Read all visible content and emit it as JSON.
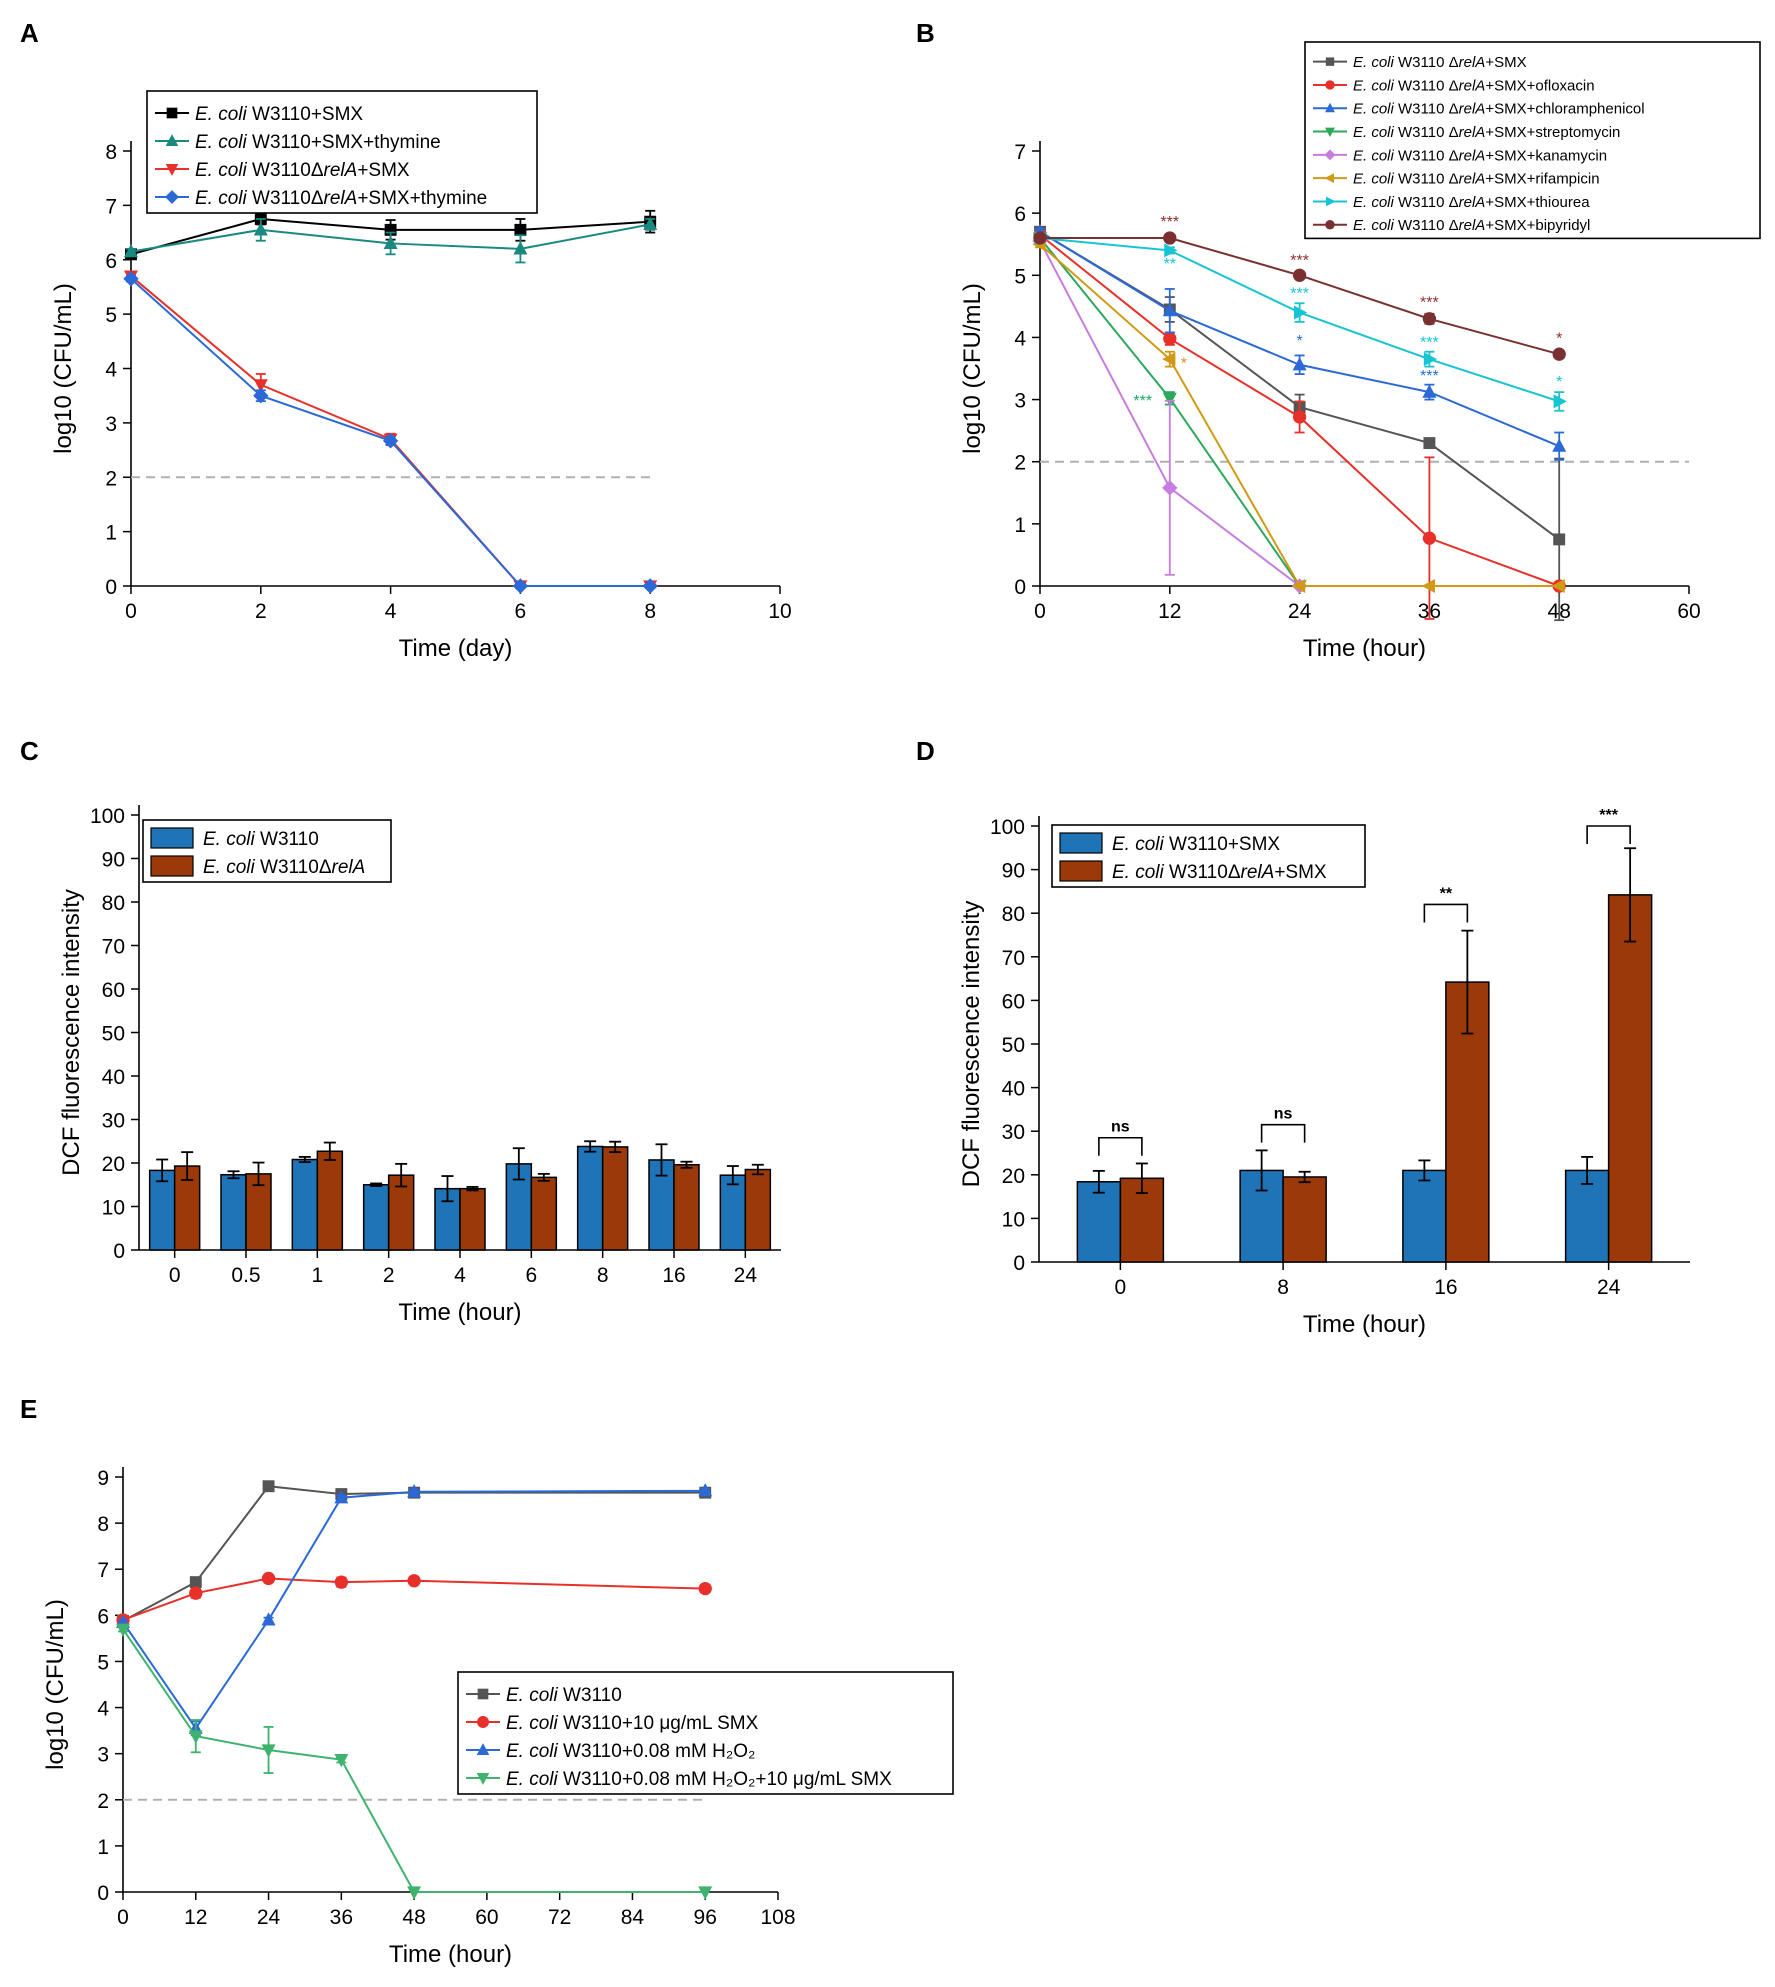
{
  "colors": {
    "axis": "#000000",
    "dashed": "#b0b0b0",
    "sig_brown": "#8b2e2e",
    "sig_cyan": "#17c4d1",
    "sig_blue": "#1f6fd6",
    "sig_green": "#1aa86a",
    "sig_gold": "#d09a14"
  },
  "chart_data": [
    {
      "panel": "A",
      "type": "line",
      "xlabel": "Time (day)",
      "ylabel": "log10 (CFU/mL)",
      "xlim": [
        0,
        10
      ],
      "ylim": [
        0,
        8
      ],
      "xticks": [
        "0",
        "2",
        "4",
        "6",
        "8",
        "10"
      ],
      "yticks": [
        "0",
        "1",
        "2",
        "3",
        "4",
        "5",
        "6",
        "7",
        "8"
      ],
      "threshold": {
        "value": 2,
        "x_from": 0,
        "x_to": 8
      },
      "legend_position": "top-left",
      "series": [
        {
          "prefix": "E. coli",
          "name": " W3110+SMX",
          "color": "#000000",
          "marker": "square",
          "x": [
            0,
            2,
            4,
            6,
            8
          ],
          "y": [
            6.1,
            6.75,
            6.55,
            6.55,
            6.7
          ],
          "err": [
            0.05,
            0.1,
            0.18,
            0.2,
            0.2
          ]
        },
        {
          "prefix": "E. coli",
          "name": " W3110+SMX+thymine",
          "color": "#1a8a80",
          "marker": "triangle-up",
          "x": [
            0,
            2,
            4,
            6,
            8
          ],
          "y": [
            6.15,
            6.55,
            6.3,
            6.2,
            6.65
          ],
          "err": [
            0.05,
            0.2,
            0.2,
            0.25,
            0.1
          ]
        },
        {
          "prefix": "E. coli",
          "name": " W3110ΔrelA+SMX",
          "color": "#e8302a",
          "marker": "triangle-down",
          "x": [
            0,
            2,
            4,
            6,
            8
          ],
          "y": [
            5.7,
            3.7,
            2.7,
            0,
            0
          ],
          "err": [
            0.05,
            0.2,
            0.1,
            0,
            0
          ]
        },
        {
          "prefix": "E. coli",
          "name": " W3110ΔrelA+SMX+thymine",
          "color": "#2b6ad6",
          "marker": "diamond",
          "x": [
            0,
            2,
            4,
            6,
            8
          ],
          "y": [
            5.65,
            3.5,
            2.67,
            0,
            0
          ],
          "err": [
            0.05,
            0.1,
            0.08,
            0,
            0
          ]
        }
      ]
    },
    {
      "panel": "B",
      "type": "line",
      "xlabel": "Time (hour)",
      "ylabel": "log10 (CFU/mL)",
      "xlim": [
        0,
        60
      ],
      "ylim": [
        0,
        7
      ],
      "xticks": [
        "0",
        "12",
        "24",
        "36",
        "48",
        "60"
      ],
      "yticks": [
        "0",
        "1",
        "2",
        "3",
        "4",
        "5",
        "6",
        "7"
      ],
      "threshold": {
        "value": 2,
        "x_from": 0,
        "x_to": 60
      },
      "legend_position": "top-right",
      "series": [
        {
          "prefix": "E. coli",
          "name": " W3110 ΔrelA+SMX",
          "color": "#555555",
          "marker": "square",
          "x": [
            0,
            12,
            24,
            36,
            48
          ],
          "y": [
            5.7,
            4.45,
            2.88,
            2.3,
            0.75
          ],
          "err": [
            0.05,
            0.2,
            0.2,
            0.05,
            1.3
          ]
        },
        {
          "prefix": "E. coli",
          "name": " W3110 ΔrelA+SMX+ofloxacin",
          "color": "#e8302a",
          "marker": "circle",
          "x": [
            0,
            12,
            24,
            36,
            48
          ],
          "y": [
            5.65,
            3.98,
            2.72,
            0.77,
            0
          ],
          "err": [
            0.05,
            0.1,
            0.25,
            1.3,
            0
          ]
        },
        {
          "prefix": "E. coli",
          "name": " W3110 ΔrelA+SMX+chloramphenicol",
          "color": "#2b6ad6",
          "marker": "triangle-up",
          "x": [
            0,
            12,
            24,
            36,
            48
          ],
          "y": [
            5.7,
            4.43,
            3.56,
            3.12,
            2.25
          ],
          "err": [
            0.05,
            0.35,
            0.15,
            0.12,
            0.22
          ]
        },
        {
          "prefix": "E. coli",
          "name": " W3110 ΔrelA+SMX+streptomycin",
          "color": "#2ca85a",
          "marker": "triangle-down",
          "x": [
            0,
            12,
            24
          ],
          "y": [
            5.6,
            3.02,
            0
          ],
          "err": [
            0.05,
            0.1,
            0
          ]
        },
        {
          "prefix": "E. coli",
          "name": " W3110 ΔrelA+SMX+kanamycin",
          "color": "#c77ce0",
          "marker": "diamond",
          "x": [
            0,
            12,
            24
          ],
          "y": [
            5.55,
            1.58,
            0
          ],
          "err": [
            0.05,
            1.4,
            0
          ]
        },
        {
          "prefix": "E. coli",
          "name": " W3110 ΔrelA+SMX+rifampicin",
          "color": "#d09a14",
          "marker": "triangle-left",
          "x": [
            0,
            12,
            24,
            36,
            48
          ],
          "y": [
            5.5,
            3.65,
            0,
            0,
            0
          ],
          "err": [
            0.05,
            0.12,
            0,
            0,
            0
          ]
        },
        {
          "prefix": "E. coli",
          "name": " W3110 ΔrelA+SMX+thiourea",
          "color": "#17c4d1",
          "marker": "triangle-right",
          "x": [
            0,
            12,
            24,
            36,
            48
          ],
          "y": [
            5.6,
            5.4,
            4.4,
            3.65,
            2.97
          ],
          "err": [
            0.05,
            0.05,
            0.15,
            0.12,
            0.15
          ]
        },
        {
          "prefix": "E. coli",
          "name": " W3110 ΔrelA+SMX+bipyridyl",
          "color": "#7a3030",
          "marker": "circle",
          "x": [
            0,
            12,
            24,
            36,
            48
          ],
          "y": [
            5.6,
            5.6,
            5.0,
            4.3,
            3.73
          ],
          "err": [
            0.05,
            0.05,
            0.05,
            0.08,
            0.05
          ]
        }
      ],
      "annotations": [
        {
          "text": "***",
          "x": 12,
          "y": 5.78,
          "color": "#8b2e2e"
        },
        {
          "text": "**",
          "x": 12,
          "y": 5.1,
          "color": "#17c4d1"
        },
        {
          "text": "***",
          "x": 24,
          "y": 5.16,
          "color": "#8b2e2e"
        },
        {
          "text": "***",
          "x": 24,
          "y": 4.63,
          "color": "#17c4d1"
        },
        {
          "text": "*",
          "x": 24,
          "y": 3.86,
          "color": "#1f6fd6"
        },
        {
          "text": "***",
          "x": 36,
          "y": 4.48,
          "color": "#8b2e2e"
        },
        {
          "text": "***",
          "x": 36,
          "y": 3.84,
          "color": "#17c4d1"
        },
        {
          "text": "***",
          "x": 36,
          "y": 3.3,
          "color": "#1f6fd6"
        },
        {
          "text": "*",
          "x": 48,
          "y": 3.9,
          "color": "#8b2e2e"
        },
        {
          "text": "*",
          "x": 48,
          "y": 3.2,
          "color": "#17c4d1"
        },
        {
          "text": "***",
          "x": 9.5,
          "y": 2.9,
          "color": "#1aa86a"
        },
        {
          "text": "*",
          "x": 13.3,
          "y": 3.5,
          "color": "#d09a14"
        }
      ]
    },
    {
      "panel": "C",
      "type": "bar",
      "xlabel": "Time (hour)",
      "ylabel": "DCF fluorescence intensity",
      "ylim": [
        0,
        100
      ],
      "categories": [
        "0",
        "0.5",
        "1",
        "2",
        "4",
        "6",
        "8",
        "16",
        "24"
      ],
      "yticks": [
        "0",
        "10",
        "20",
        "30",
        "40",
        "50",
        "60",
        "70",
        "80",
        "90",
        "100"
      ],
      "legend_position": "top-left",
      "series": [
        {
          "prefix": "E. coli",
          "name": " W3110",
          "color": "#1f73b7",
          "values": [
            18.3,
            17.3,
            20.8,
            15,
            14.1,
            19.8,
            23.8,
            20.7,
            17.2
          ],
          "err": [
            2.5,
            0.8,
            0.6,
            0.3,
            2.9,
            3.6,
            1.2,
            3.6,
            2.1
          ]
        },
        {
          "prefix": "E. coli",
          "name": " W3110ΔrelA",
          "color": "#9b3a08",
          "values": [
            19.3,
            17.5,
            22.7,
            17.2,
            14.1,
            16.7,
            23.7,
            19.6,
            18.5
          ],
          "err": [
            3.2,
            2.6,
            2,
            2.6,
            0.4,
            0.8,
            1.2,
            0.7,
            1.1
          ]
        }
      ]
    },
    {
      "panel": "D",
      "type": "bar",
      "xlabel": "Time (hour)",
      "ylabel": "DCF fluorescence intensity",
      "ylim": [
        0,
        100
      ],
      "categories": [
        "0",
        "8",
        "16",
        "24"
      ],
      "yticks": [
        "0",
        "10",
        "20",
        "30",
        "40",
        "50",
        "60",
        "70",
        "80",
        "90",
        "100"
      ],
      "legend_position": "top-left",
      "series": [
        {
          "prefix": "E. coli",
          "name": " W3110+SMX",
          "color": "#1f73b7",
          "values": [
            18.4,
            21,
            21,
            21
          ],
          "err": [
            2.5,
            4.6,
            2.3,
            3.1
          ]
        },
        {
          "prefix": "E. coli",
          "name": " W3110ΔrelA+SMX",
          "color": "#9b3a08",
          "values": [
            19.2,
            19.5,
            64.2,
            84.2
          ],
          "err": [
            3.4,
            1.2,
            11.8,
            10.7
          ]
        }
      ],
      "significance": [
        {
          "category": 0,
          "label": "ns",
          "y": 28.5
        },
        {
          "category": 1,
          "label": "ns",
          "y": 31.5
        },
        {
          "category": 2,
          "label": "**",
          "y": 82
        },
        {
          "category": 3,
          "label": "***",
          "y": 100
        }
      ]
    },
    {
      "panel": "E",
      "type": "line",
      "xlabel": "Time (hour)",
      "ylabel": "log10 (CFU/mL)",
      "xlim": [
        0,
        108
      ],
      "ylim": [
        0,
        9
      ],
      "xticks": [
        "0",
        "12",
        "24",
        "36",
        "48",
        "60",
        "72",
        "84",
        "96",
        "108"
      ],
      "yticks": [
        "0",
        "1",
        "2",
        "3",
        "4",
        "5",
        "6",
        "7",
        "8",
        "9"
      ],
      "threshold": {
        "value": 2,
        "x_from": 0,
        "x_to": 96
      },
      "legend_position": "bottom-right",
      "series": [
        {
          "prefix": "E. coli",
          "name": " W3110",
          "color": "#555555",
          "marker": "square",
          "x": [
            0,
            12,
            24,
            36,
            48,
            96
          ],
          "y": [
            5.88,
            6.72,
            8.8,
            8.63,
            8.66,
            8.66
          ],
          "err": [
            0.05,
            0.05,
            0.05,
            0.05,
            0.05,
            0.05
          ]
        },
        {
          "prefix": "E. coli",
          "name": " W3110+10 μg/mL SMX",
          "color": "#e8302a",
          "marker": "circle",
          "x": [
            0,
            12,
            24,
            36,
            48,
            96
          ],
          "y": [
            5.9,
            6.48,
            6.8,
            6.72,
            6.75,
            6.58
          ],
          "err": [
            0.05,
            0.1,
            0.05,
            0.1,
            0.06,
            0.08
          ]
        },
        {
          "prefix": "E. coli",
          "name": " W3110+0.08 mM H₂O₂",
          "color": "#2b6ad6",
          "marker": "triangle-up",
          "x": [
            0,
            12,
            24,
            36,
            48,
            96
          ],
          "y": [
            5.85,
            3.55,
            5.9,
            8.55,
            8.68,
            8.7
          ],
          "err": [
            0.05,
            0.15,
            0.05,
            0.05,
            0.05,
            0.05
          ]
        },
        {
          "prefix": "E. coli",
          "name": " W3110+0.08 mM H₂O₂+10 μg/mL SMX",
          "color": "#3fb36e",
          "marker": "triangle-down",
          "x": [
            0,
            12,
            24,
            36,
            48,
            96
          ],
          "y": [
            5.7,
            3.38,
            3.08,
            2.87,
            0,
            0
          ],
          "err": [
            0.05,
            0.35,
            0.5,
            0.06,
            0,
            0
          ]
        }
      ]
    }
  ]
}
